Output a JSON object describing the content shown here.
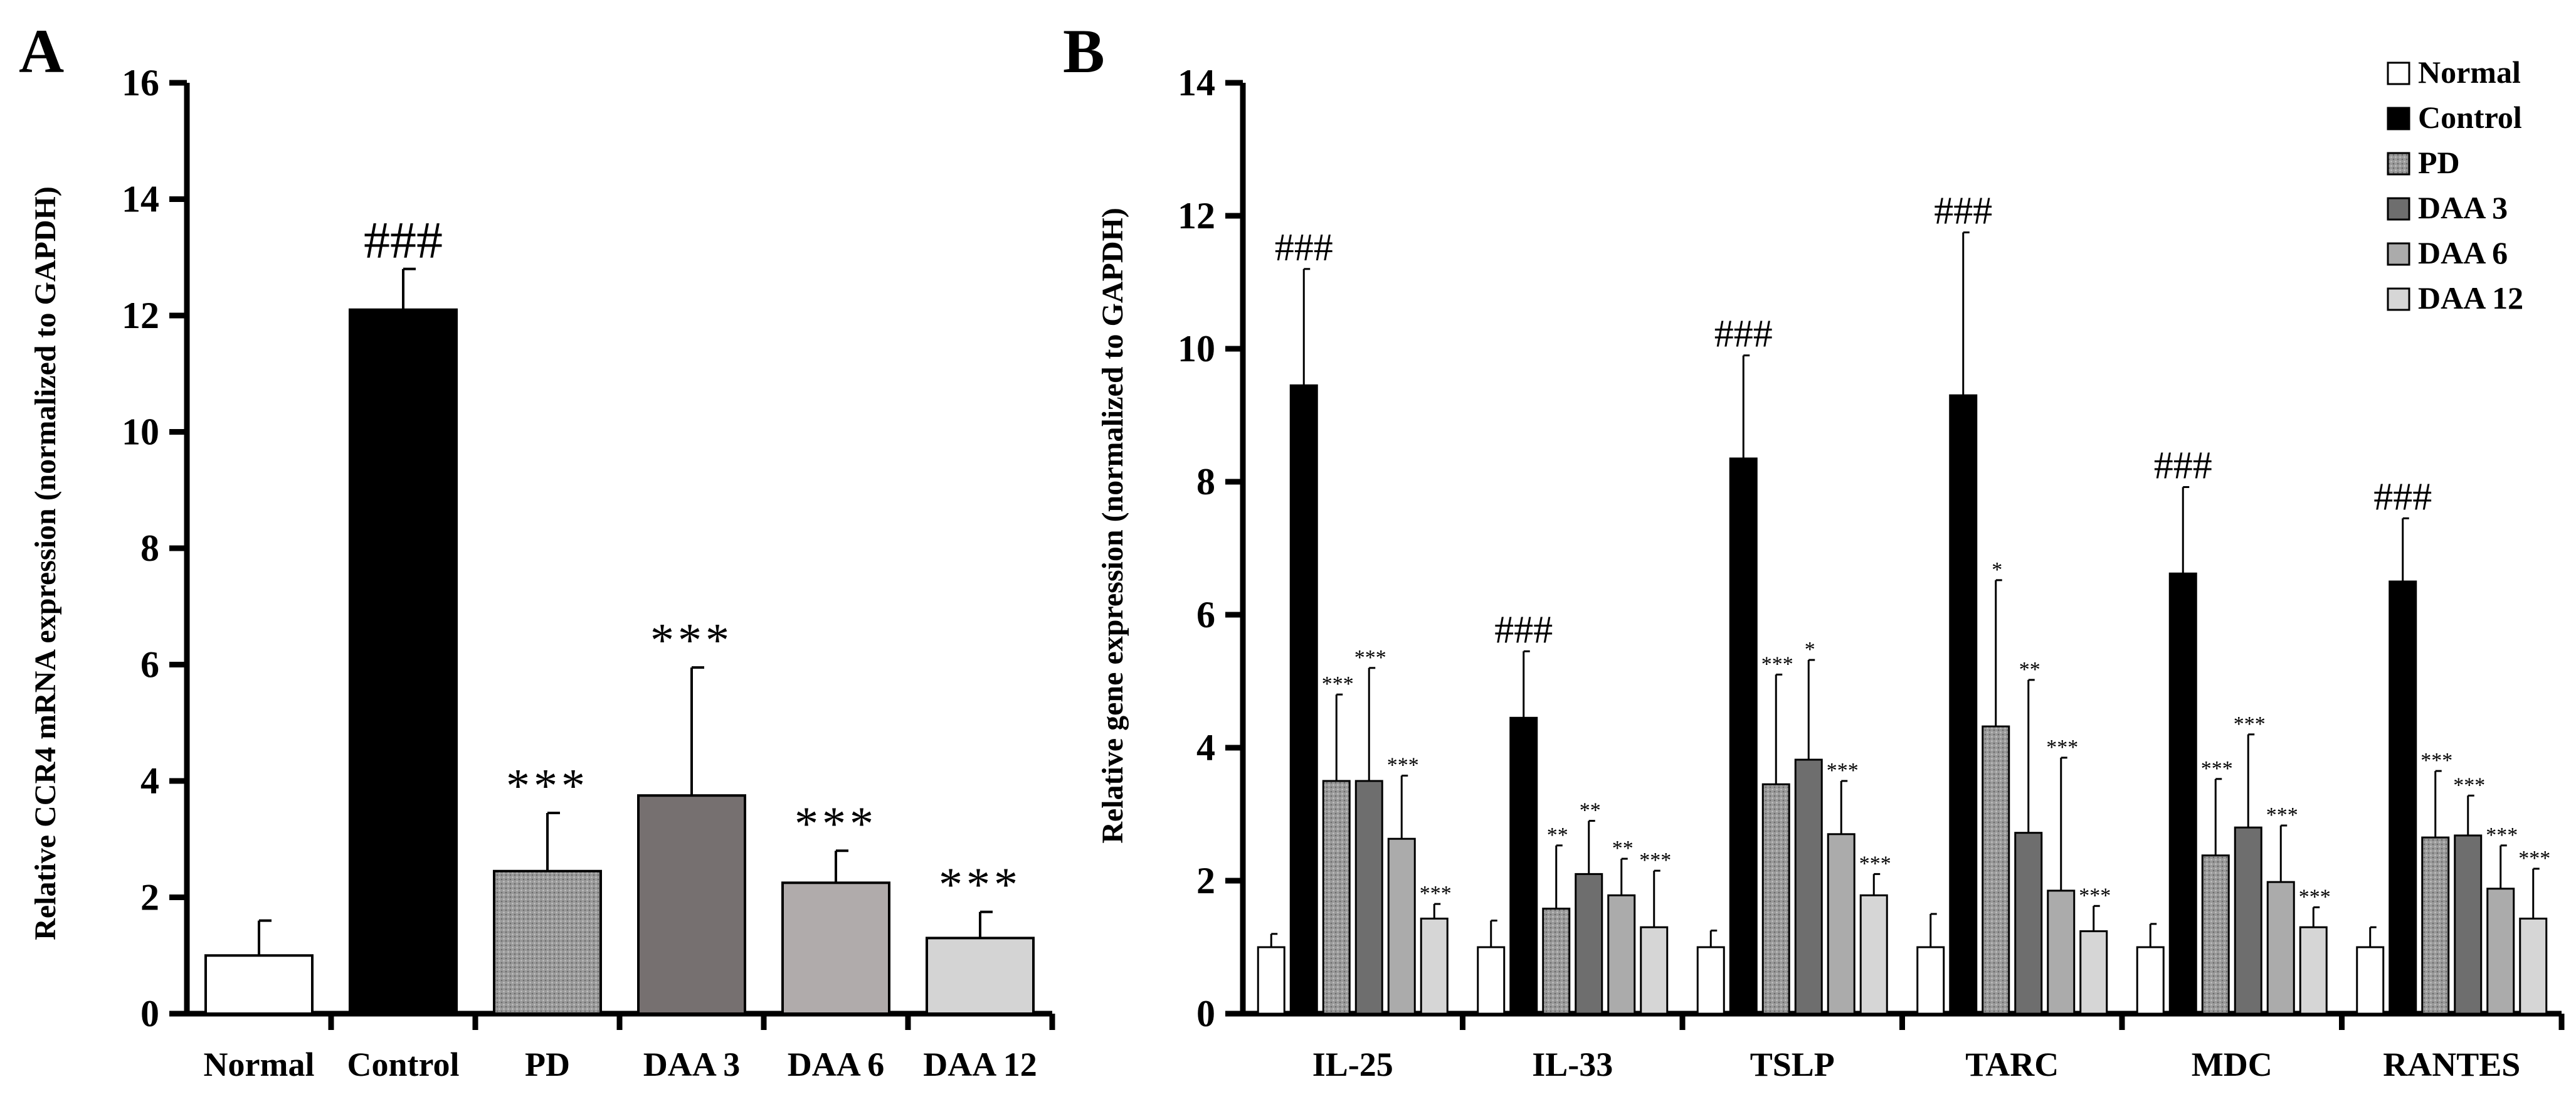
{
  "panels": {
    "a": {
      "label": "A"
    },
    "b": {
      "label": "B"
    }
  },
  "chart_data": [
    {
      "type": "bar",
      "panel": "A",
      "title": "",
      "xlabel": "",
      "ylabel": "Relative  CCR4 mRNA expression (normalized to GAPDH)",
      "ylim": [
        0,
        16
      ],
      "yticks": [
        0,
        2,
        4,
        6,
        8,
        10,
        12,
        14,
        16
      ],
      "categories": [
        "Normal",
        "Control",
        "PD",
        "DAA 3",
        "DAA 6",
        "DAA 12"
      ],
      "values": [
        1.0,
        12.1,
        2.45,
        3.75,
        2.25,
        1.3
      ],
      "errors": [
        0.6,
        0.7,
        1.0,
        2.2,
        0.55,
        0.45
      ],
      "annotations": [
        "",
        "###",
        "***",
        "***",
        "***",
        "***"
      ],
      "colors": [
        "#ffffff",
        "#000000",
        "#8a8a8a",
        "#767070",
        "#b0abab",
        "#d4d4d4"
      ]
    },
    {
      "type": "bar",
      "panel": "B",
      "title": "",
      "xlabel": "",
      "ylabel": "Relative gene expression  (normalized to GAPDH)",
      "ylim": [
        0,
        14
      ],
      "yticks": [
        0,
        2,
        4,
        6,
        8,
        10,
        12,
        14
      ],
      "legend_position": "top-right",
      "categories": [
        "IL-25",
        "IL-33",
        "TSLP",
        "TARC",
        "MDC",
        "RANTES"
      ],
      "series": [
        {
          "name": "Normal",
          "color": "#ffffff",
          "values": [
            1.0,
            1.0,
            1.0,
            1.0,
            1.0,
            1.0
          ],
          "errors": [
            0.2,
            0.4,
            0.25,
            0.5,
            0.35,
            0.3
          ],
          "annotations": [
            "",
            "",
            "",
            "",
            "",
            ""
          ]
        },
        {
          "name": "Control",
          "color": "#000000",
          "values": [
            9.45,
            4.45,
            8.35,
            9.3,
            6.62,
            6.5
          ],
          "errors": [
            1.75,
            1.0,
            1.55,
            2.45,
            1.3,
            0.95
          ],
          "annotations": [
            "###",
            "###",
            "###",
            "###",
            "###",
            "###"
          ]
        },
        {
          "name": "PD",
          "color": "#9a9a9a",
          "values": [
            3.5,
            1.58,
            3.45,
            4.32,
            2.38,
            2.65
          ],
          "errors": [
            1.3,
            0.95,
            1.65,
            2.2,
            1.15,
            1.0
          ],
          "annotations": [
            "***",
            "**",
            "***",
            "*",
            "***",
            "***"
          ]
        },
        {
          "name": "DAA 3",
          "color": "#6e6e6e",
          "values": [
            3.5,
            2.1,
            3.82,
            2.72,
            2.8,
            2.68
          ],
          "errors": [
            1.7,
            0.8,
            1.5,
            2.3,
            1.4,
            0.6
          ],
          "annotations": [
            "***",
            "**",
            "*",
            "**",
            "***",
            "***"
          ]
        },
        {
          "name": "DAA 6",
          "color": "#ababab",
          "values": [
            2.63,
            1.78,
            2.7,
            1.85,
            1.98,
            1.88
          ],
          "errors": [
            0.95,
            0.55,
            0.8,
            2.0,
            0.85,
            0.65
          ],
          "annotations": [
            "***",
            "**",
            "***",
            "***",
            "***",
            "***"
          ]
        },
        {
          "name": "DAA 12",
          "color": "#d6d6d6",
          "values": [
            1.43,
            1.3,
            1.78,
            1.24,
            1.3,
            1.43
          ],
          "errors": [
            0.22,
            0.85,
            0.32,
            0.38,
            0.3,
            0.75
          ],
          "annotations": [
            "***",
            "***",
            "***",
            "***",
            "***",
            "***"
          ]
        }
      ]
    }
  ]
}
